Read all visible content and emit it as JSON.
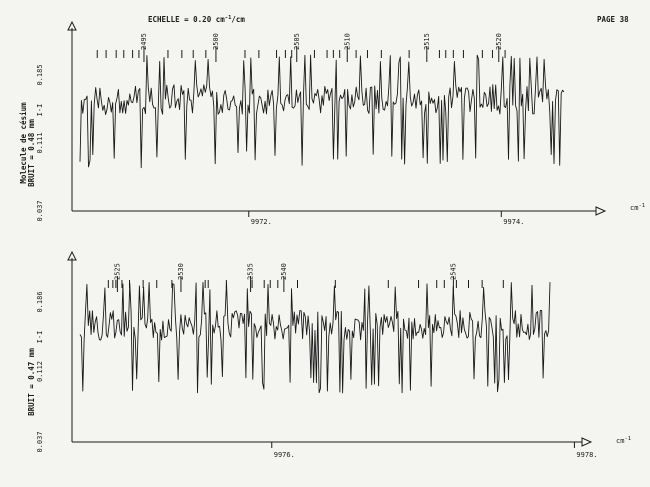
{
  "header": {
    "scale_label": "ECHELLE = 0.20 cm",
    "scale_sup": "-1",
    "scale_suffix": "/cm",
    "page_label": "PAGE 38"
  },
  "chart_data": [
    {
      "type": "line",
      "title": "",
      "xlabel": "cm-1",
      "x_ticks": [
        9972,
        9974
      ],
      "x_tick_labels": [
        "9972.",
        "9974."
      ],
      "xlim": [
        9970.6,
        9974.75
      ],
      "ylim": [
        0.037,
        0.185
      ],
      "y_tick_labels": [
        "0.037",
        "0.111",
        "0.185"
      ],
      "y_tick_values": [
        0.037,
        0.111,
        0.185
      ],
      "side_labels": {
        "molecule": "Molecule de césium",
        "noise": "BRUIT = 0.48 mm",
        "marker": "I-I"
      },
      "line_numbers": [
        {
          "label": "2495",
          "x": 9971.17
        },
        {
          "label": "2500",
          "x": 9971.74
        },
        {
          "label": "2505",
          "x": 9972.38
        },
        {
          "label": "2510",
          "x": 9972.78
        },
        {
          "label": "2515",
          "x": 9973.41
        },
        {
          "label": "2520",
          "x": 9973.98
        }
      ],
      "tick_marks_x": [
        9970.8,
        9970.87,
        9970.95,
        9971.01,
        9971.08,
        9971.13,
        9971.36,
        9971.47,
        9971.56,
        9971.66,
        9971.97,
        9972.08,
        9972.22,
        9972.29,
        9972.34,
        9972.52,
        9972.62,
        9972.67,
        9972.72,
        9972.85,
        9972.94,
        9973.05,
        9973.27,
        9973.51,
        9973.56,
        9973.62,
        9973.7,
        9973.85,
        9973.93,
        9974.03
      ],
      "grid": false,
      "legend": "none"
    },
    {
      "type": "line",
      "title": "",
      "xlabel": "cm-1",
      "x_ticks": [
        9976,
        9978
      ],
      "x_tick_labels": [
        "9976.",
        "9978."
      ],
      "xlim": [
        9974.68,
        9978.05
      ],
      "ylim": [
        0.037,
        0.186
      ],
      "y_tick_labels": [
        "0.037",
        "0.112",
        "0.186"
      ],
      "y_tick_values": [
        0.037,
        0.112,
        0.186
      ],
      "side_labels": {
        "noise": "BRUIT = 0.47 mm",
        "marker": "I-I"
      },
      "line_numbers": [
        {
          "label": "2525",
          "x": 9974.98
        },
        {
          "label": "2530",
          "x": 9975.4
        },
        {
          "label": "2535",
          "x": 9975.86
        },
        {
          "label": "2540",
          "x": 9976.08
        },
        {
          "label": "2545",
          "x": 9977.2
        }
      ],
      "tick_marks_x": [
        9974.92,
        9974.95,
        9974.97,
        9975.01,
        9975.06,
        9975.15,
        9975.24,
        9975.34,
        9975.56,
        9975.58,
        9975.7,
        9975.87,
        9975.95,
        9975.99,
        9976.04,
        9976.17,
        9976.42,
        9976.77,
        9976.97,
        9977.09,
        9977.14,
        9977.22,
        9977.3,
        9977.39,
        9977.53
      ],
      "grid": false,
      "legend": "none"
    }
  ]
}
